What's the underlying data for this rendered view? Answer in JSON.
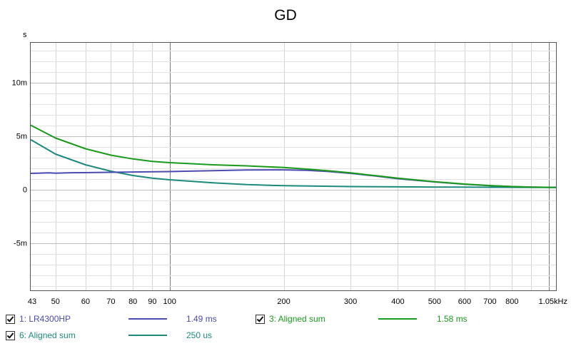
{
  "chart_data": {
    "type": "line",
    "title": "GD",
    "ylabel": "s",
    "xlabel": "",
    "x_scale": "log",
    "xlim": [
      43,
      1050
    ],
    "ylim": [
      -0.0095,
      0.0137
    ],
    "grid": true,
    "x_ticks": [
      {
        "value": 43,
        "label": "43"
      },
      {
        "value": 50,
        "label": "50"
      },
      {
        "value": 60,
        "label": "60"
      },
      {
        "value": 70,
        "label": "70"
      },
      {
        "value": 80,
        "label": "80"
      },
      {
        "value": 90,
        "label": "90"
      },
      {
        "value": 100,
        "label": "100"
      },
      {
        "value": 200,
        "label": "200"
      },
      {
        "value": 300,
        "label": "300"
      },
      {
        "value": 400,
        "label": "400"
      },
      {
        "value": 500,
        "label": "500"
      },
      {
        "value": 600,
        "label": "600"
      },
      {
        "value": 700,
        "label": "700"
      },
      {
        "value": 800,
        "label": "800"
      },
      {
        "value": 1050,
        "label": "1.05kHz"
      }
    ],
    "y_ticks": [
      {
        "value": 0.01,
        "label": "10m"
      },
      {
        "value": 0.005,
        "label": "5m"
      },
      {
        "value": 0,
        "label": "0"
      },
      {
        "value": -0.005,
        "label": "-5m"
      }
    ],
    "series": [
      {
        "name": "1: LR4300HP",
        "value_label": "1.49 ms",
        "color": "#4b4bb0",
        "x": [
          43,
          45,
          48,
          50,
          55,
          60,
          70,
          80,
          100,
          130,
          160,
          200,
          230,
          260,
          300,
          350,
          400,
          500,
          600,
          700,
          800,
          900,
          1050
        ],
        "y": [
          0.0015,
          0.00152,
          0.00155,
          0.00152,
          0.00156,
          0.00157,
          0.0016,
          0.00163,
          0.00167,
          0.00175,
          0.00182,
          0.00183,
          0.00178,
          0.00168,
          0.0015,
          0.00125,
          0.001,
          0.0007,
          0.00048,
          0.00035,
          0.00027,
          0.00022,
          0.00018
        ]
      },
      {
        "name": "3: Aligned sum",
        "value_label": "1.58 ms",
        "color": "#1a9a1a",
        "x": [
          43,
          50,
          60,
          70,
          80,
          90,
          100,
          130,
          160,
          200,
          230,
          260,
          300,
          350,
          400,
          500,
          600,
          700,
          800,
          900,
          1050
        ],
        "y": [
          0.006,
          0.0048,
          0.0038,
          0.0032,
          0.00285,
          0.00262,
          0.0025,
          0.0023,
          0.0022,
          0.00205,
          0.0019,
          0.00175,
          0.00155,
          0.00128,
          0.00105,
          0.00072,
          0.0005,
          0.00036,
          0.00027,
          0.00022,
          0.00018
        ]
      },
      {
        "name": "6: Aligned sum",
        "value_label": "250 us",
        "color": "#1e8a7e",
        "x": [
          43,
          50,
          60,
          70,
          80,
          90,
          100,
          130,
          160,
          200,
          300,
          400,
          500,
          700,
          1050
        ],
        "y": [
          0.00465,
          0.0033,
          0.0023,
          0.0017,
          0.0013,
          0.00105,
          0.0009,
          0.00062,
          0.00045,
          0.00035,
          0.00027,
          0.00024,
          0.00022,
          0.0002,
          0.00018
        ]
      }
    ]
  }
}
